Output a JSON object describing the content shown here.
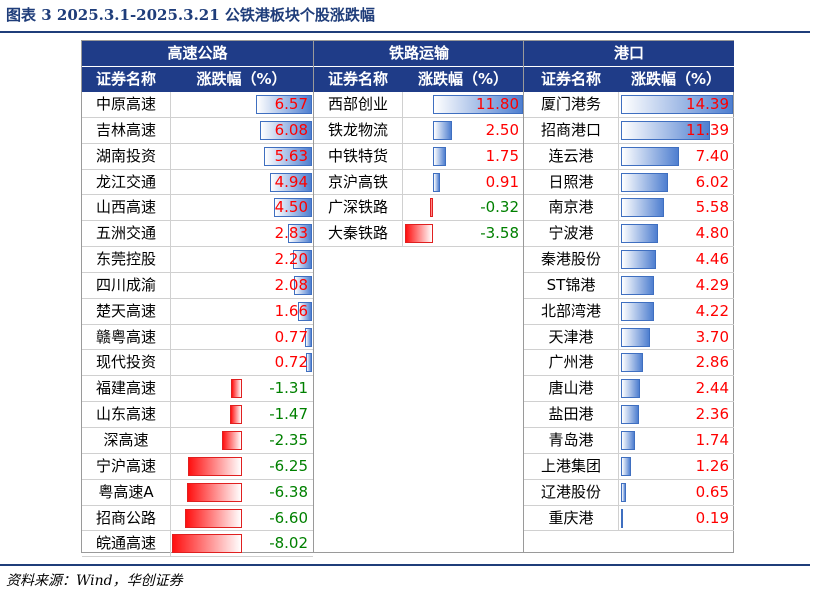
{
  "figure_title": "图表 3   2025.3.1-2025.3.21 公铁港板块个股涨跌幅",
  "source": "资料来源：Wind，华创证券",
  "colors": {
    "header_bg": "#1f3c88",
    "positive_text": "#ff0000",
    "negative_text": "#008000",
    "positive_bar": "#4f7fd0",
    "negative_bar": "#ff1010"
  },
  "chart_data": {
    "type": "table",
    "columns": [
      "证券名称",
      "涨跌幅（%）"
    ],
    "sections": [
      {
        "title": "高速公路",
        "col_name": "证券名称",
        "col_value": "涨跌幅（%）",
        "items": [
          {
            "name": "中原高速",
            "value": 6.57
          },
          {
            "name": "吉林高速",
            "value": 6.08
          },
          {
            "name": "湖南投资",
            "value": 5.63
          },
          {
            "name": "龙江交通",
            "value": 4.94
          },
          {
            "name": "山西高速",
            "value": 4.5
          },
          {
            "name": "五洲交通",
            "value": 2.83
          },
          {
            "name": "东莞控股",
            "value": 2.2
          },
          {
            "name": "四川成渝",
            "value": 2.08
          },
          {
            "name": "楚天高速",
            "value": 1.66
          },
          {
            "name": "赣粤高速",
            "value": 0.77
          },
          {
            "name": "现代投资",
            "value": 0.72
          },
          {
            "name": "福建高速",
            "value": -1.31
          },
          {
            "name": "山东高速",
            "value": -1.47
          },
          {
            "name": "深高速",
            "value": -2.35
          },
          {
            "name": "宁沪高速",
            "value": -6.25
          },
          {
            "name": "粤高速A",
            "value": -6.38
          },
          {
            "name": "招商公路",
            "value": -6.6
          },
          {
            "name": "皖通高速",
            "value": -8.02
          }
        ]
      },
      {
        "title": "铁路运输",
        "col_name": "证券名称",
        "col_value": "涨跌幅（%）",
        "items": [
          {
            "name": "西部创业",
            "value": 11.8
          },
          {
            "name": "铁龙物流",
            "value": 2.5
          },
          {
            "name": "中铁特货",
            "value": 1.75
          },
          {
            "name": "京沪高铁",
            "value": 0.91
          },
          {
            "name": "广深铁路",
            "value": -0.32
          },
          {
            "name": "大秦铁路",
            "value": -3.58
          }
        ]
      },
      {
        "title": "港口",
        "col_name": "证券名称",
        "col_value": "涨跌幅（%）",
        "items": [
          {
            "name": "厦门港务",
            "value": 14.39
          },
          {
            "name": "招商港口",
            "value": 11.39
          },
          {
            "name": "连云港",
            "value": 7.4
          },
          {
            "name": "日照港",
            "value": 6.02
          },
          {
            "name": "南京港",
            "value": 5.58
          },
          {
            "name": "宁波港",
            "value": 4.8
          },
          {
            "name": "秦港股份",
            "value": 4.46
          },
          {
            "name": "ST锦港",
            "value": 4.29
          },
          {
            "name": "北部湾港",
            "value": 4.22
          },
          {
            "name": "天津港",
            "value": 3.7
          },
          {
            "name": "广州港",
            "value": 2.86
          },
          {
            "name": "唐山港",
            "value": 2.44
          },
          {
            "name": "盐田港",
            "value": 2.36
          },
          {
            "name": "青岛港",
            "value": 1.74
          },
          {
            "name": "上港集团",
            "value": 1.26
          },
          {
            "name": "辽港股份",
            "value": 0.65
          },
          {
            "name": "重庆港",
            "value": 0.19
          }
        ]
      }
    ]
  }
}
